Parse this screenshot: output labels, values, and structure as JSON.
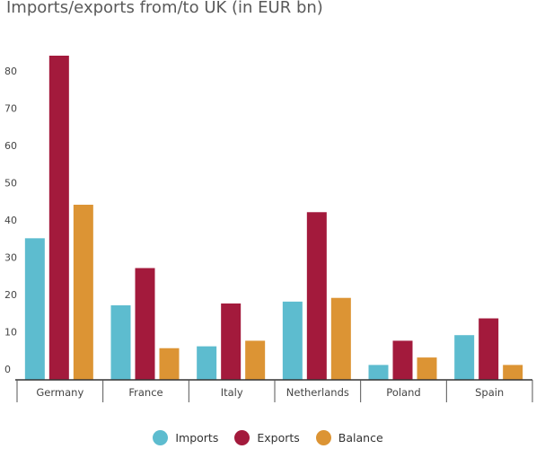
{
  "chart_data": {
    "type": "bar",
    "title": "Imports/exports from/to UK (in EUR bn)",
    "categories": [
      "Germany",
      "France",
      "Italy",
      "Netherlands",
      "Poland",
      "Spain"
    ],
    "series": [
      {
        "name": "Imports",
        "color": "#5dbccf",
        "values": [
          38,
          20,
          9,
          21,
          4,
          12
        ]
      },
      {
        "name": "Exports",
        "color": "#a31a3c",
        "values": [
          87,
          30,
          20.5,
          45,
          10.5,
          16.5
        ]
      },
      {
        "name": "Balance",
        "color": "#dc9434",
        "values": [
          47,
          8.5,
          10.5,
          22,
          6,
          4
        ]
      }
    ],
    "yticks": [
      0,
      10,
      20,
      30,
      40,
      50,
      60,
      70,
      80
    ],
    "ylim": [
      0,
      90
    ],
    "grid": false,
    "legend_position": "bottom-center"
  }
}
